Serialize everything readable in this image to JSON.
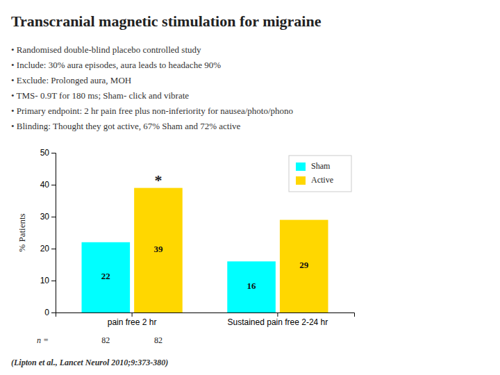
{
  "chart_data": {
    "type": "bar",
    "title": "Transcranial magnetic stimulation for migraine",
    "bullets": [
      "• Randomised double-blind placebo controlled study",
      "• Include: 30% aura episodes, aura leads to headache 90%",
      "• Exclude: Prolonged aura, MOH",
      "• TMS- 0.9T for 180 ms; Sham- click and vibrate",
      "• Primary endpoint: 2 hr pain free plus non-inferiority for nausea/photo/phono",
      "• Blinding: Thought they got active, 67% Sham and 72% active"
    ],
    "categories": [
      "pain free 2 hr",
      "Sustained pain free 2-24 hr"
    ],
    "series": [
      {
        "name": "Sham",
        "color": "#00FFFF",
        "values": [
          22,
          16
        ]
      },
      {
        "name": "Active",
        "color": "#FFD700",
        "values": [
          39,
          29
        ]
      }
    ],
    "ylabel": "% Patients",
    "ylim": [
      0,
      50
    ],
    "yticks": [
      0,
      10,
      20,
      30,
      40,
      50
    ],
    "grid": false,
    "legend": "upper right",
    "data_labels": true,
    "annotations": [
      {
        "text": "*",
        "series": "Active",
        "category": "pain free 2 hr"
      }
    ],
    "sample_size": {
      "label": "n =",
      "category": "pain free 2 hr",
      "values": [
        82,
        82
      ]
    },
    "citation": "(Lipton et al., Lancet Neurol 2010;9:373-380)"
  }
}
